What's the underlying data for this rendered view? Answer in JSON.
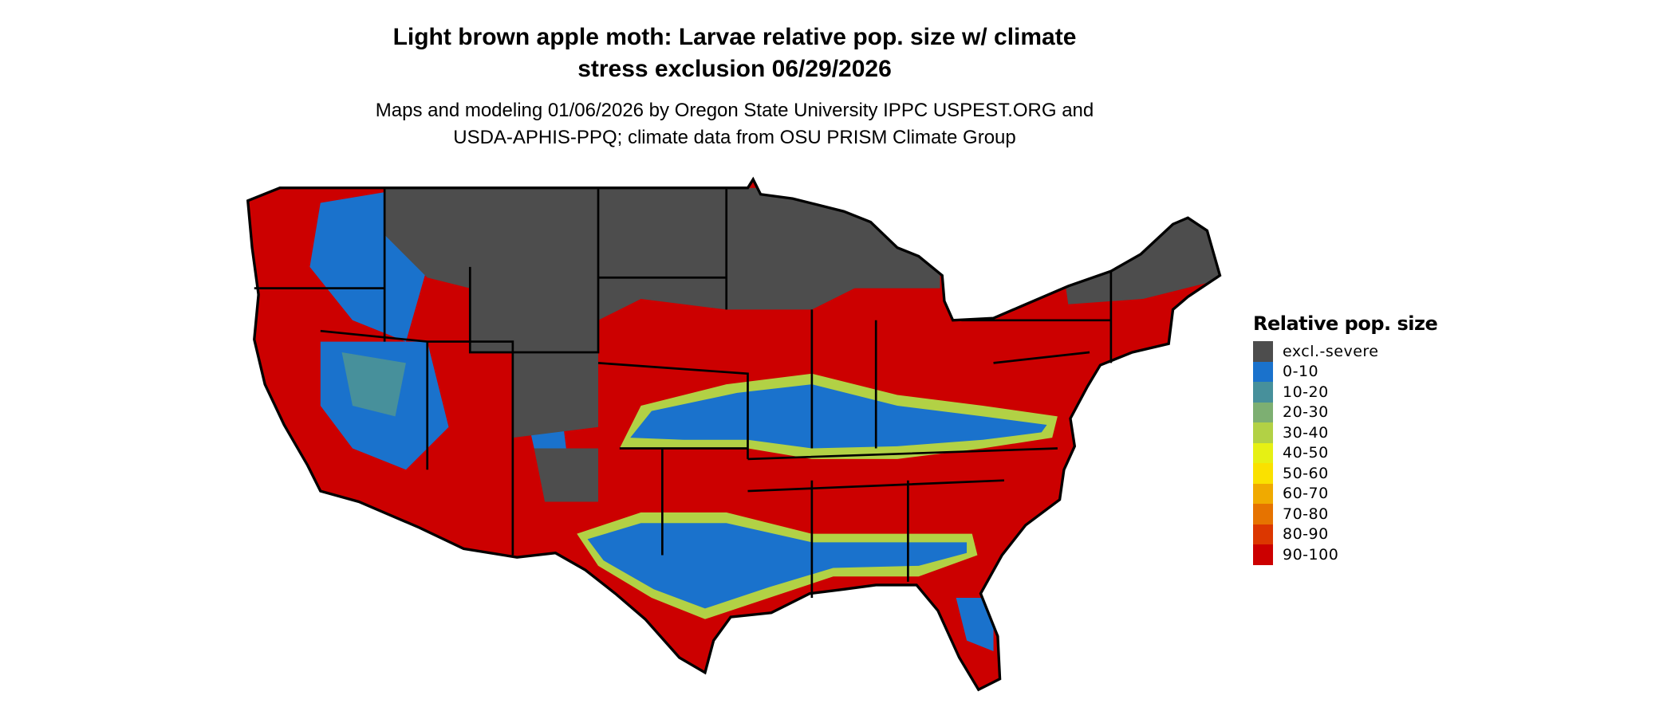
{
  "title_line1": "Light brown apple moth: Larvae relative pop. size w/ climate",
  "title_line2": "stress exclusion 06/29/2026",
  "subtitle_line1": "Maps and modeling 01/06/2026 by Oregon State University IPPC USPEST.ORG and",
  "subtitle_line2": "USDA-APHIS-PPQ; climate data from OSU PRISM Climate Group",
  "legend": {
    "title": "Relative pop. size",
    "items": [
      {
        "label": "excl.-severe",
        "color": "#4d4d4d"
      },
      {
        "label": "0-10",
        "color": "#1a72cc"
      },
      {
        "label": "10-20",
        "color": "#47909b"
      },
      {
        "label": "20-30",
        "color": "#7daf72"
      },
      {
        "label": "30-40",
        "color": "#b2d145"
      },
      {
        "label": "40-50",
        "color": "#e6f014"
      },
      {
        "label": "50-60",
        "color": "#fae100"
      },
      {
        "label": "60-70",
        "color": "#f0aa00"
      },
      {
        "label": "70-80",
        "color": "#e67300"
      },
      {
        "label": "80-90",
        "color": "#dc3700"
      },
      {
        "label": "90-100",
        "color": "#cc0000"
      }
    ]
  }
}
